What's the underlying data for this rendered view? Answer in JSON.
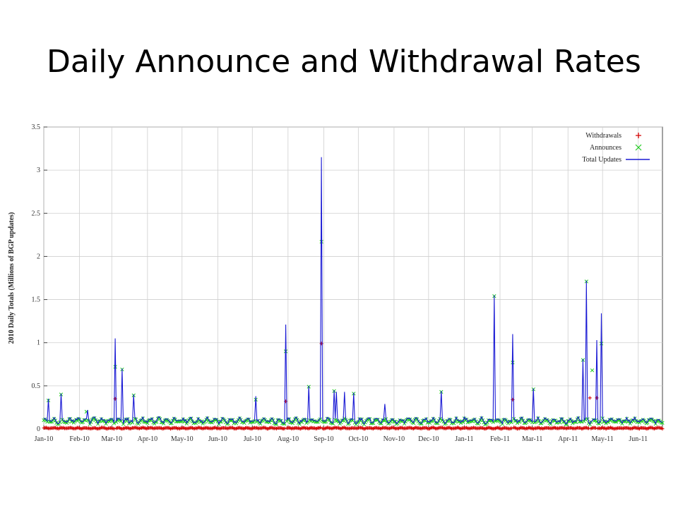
{
  "slide": {
    "title": "Daily Announce and Withdrawal Rates"
  },
  "chart_data": {
    "type": "line",
    "title": "",
    "xlabel": "",
    "ylabel": "2010 Daily Totals (Millions of BGP updates)",
    "ylim": [
      0,
      3.5
    ],
    "yticks": [
      "0",
      "0.5",
      "1",
      "1.5",
      "2",
      "2.5",
      "3",
      "3.5"
    ],
    "xticks": [
      "Jan-10",
      "Feb-10",
      "Mar-10",
      "Apr-10",
      "May-10",
      "Jun-10",
      "Jul-10",
      "Aug-10",
      "Sep-10",
      "Oct-10",
      "Nov-10",
      "Dec-10",
      "Jan-11",
      "Feb-11",
      "Mar-11",
      "Apr-11",
      "May-11",
      "Jun-11"
    ],
    "grid": true,
    "legend_position": "top-right",
    "series": [
      {
        "name": "Withdrawals",
        "marker": "+",
        "color": "#d40000",
        "baseline": 0.01,
        "peaks": [
          {
            "date": "2010-03-04",
            "value": 0.35
          },
          {
            "date": "2010-07-30",
            "value": 0.32
          },
          {
            "date": "2010-08-30",
            "value": 0.99
          },
          {
            "date": "2011-02-12",
            "value": 0.34
          },
          {
            "date": "2011-04-20",
            "value": 0.36
          },
          {
            "date": "2011-04-26",
            "value": 0.36
          }
        ]
      },
      {
        "name": "Announces",
        "marker": "x",
        "color": "#22cc22",
        "baseline": 0.09,
        "peaks": [
          {
            "date": "2010-01-05",
            "value": 0.33
          },
          {
            "date": "2010-01-16",
            "value": 0.4
          },
          {
            "date": "2010-02-07",
            "value": 0.2
          },
          {
            "date": "2010-03-04",
            "value": 0.72
          },
          {
            "date": "2010-03-10",
            "value": 0.69
          },
          {
            "date": "2010-03-20",
            "value": 0.39
          },
          {
            "date": "2010-07-04",
            "value": 0.34
          },
          {
            "date": "2010-07-30",
            "value": 0.9
          },
          {
            "date": "2010-08-19",
            "value": 0.49
          },
          {
            "date": "2010-08-30",
            "value": 2.17
          },
          {
            "date": "2010-09-10",
            "value": 0.44
          },
          {
            "date": "2010-09-27",
            "value": 0.41
          },
          {
            "date": "2010-12-12",
            "value": 0.43
          },
          {
            "date": "2011-01-27",
            "value": 1.54
          },
          {
            "date": "2011-02-12",
            "value": 0.77
          },
          {
            "date": "2011-03-02",
            "value": 0.46
          },
          {
            "date": "2011-04-14",
            "value": 0.8
          },
          {
            "date": "2011-04-17",
            "value": 1.71
          },
          {
            "date": "2011-04-22",
            "value": 0.68
          },
          {
            "date": "2011-04-30",
            "value": 0.99
          }
        ]
      },
      {
        "name": "Total Updates",
        "marker": "line",
        "color": "#1a1ad4",
        "baseline": 0.1,
        "peaks": [
          {
            "date": "2010-01-05",
            "value": 0.35
          },
          {
            "date": "2010-01-16",
            "value": 0.41
          },
          {
            "date": "2010-02-08",
            "value": 0.22
          },
          {
            "date": "2010-03-04",
            "value": 1.05
          },
          {
            "date": "2010-03-10",
            "value": 0.7
          },
          {
            "date": "2010-03-20",
            "value": 0.4
          },
          {
            "date": "2010-07-04",
            "value": 0.38
          },
          {
            "date": "2010-07-30",
            "value": 1.21
          },
          {
            "date": "2010-08-19",
            "value": 0.5
          },
          {
            "date": "2010-08-30",
            "value": 3.15
          },
          {
            "date": "2010-09-10",
            "value": 0.45
          },
          {
            "date": "2010-09-12",
            "value": 0.43
          },
          {
            "date": "2010-09-19",
            "value": 0.43
          },
          {
            "date": "2010-09-27",
            "value": 0.42
          },
          {
            "date": "2010-10-24",
            "value": 0.29
          },
          {
            "date": "2010-12-12",
            "value": 0.44
          },
          {
            "date": "2011-01-27",
            "value": 1.55
          },
          {
            "date": "2011-02-12",
            "value": 1.1
          },
          {
            "date": "2011-03-02",
            "value": 0.47
          },
          {
            "date": "2011-04-14",
            "value": 0.81
          },
          {
            "date": "2011-04-17",
            "value": 1.72
          },
          {
            "date": "2011-04-26",
            "value": 1.03
          },
          {
            "date": "2011-04-30",
            "value": 1.34
          }
        ]
      }
    ]
  }
}
